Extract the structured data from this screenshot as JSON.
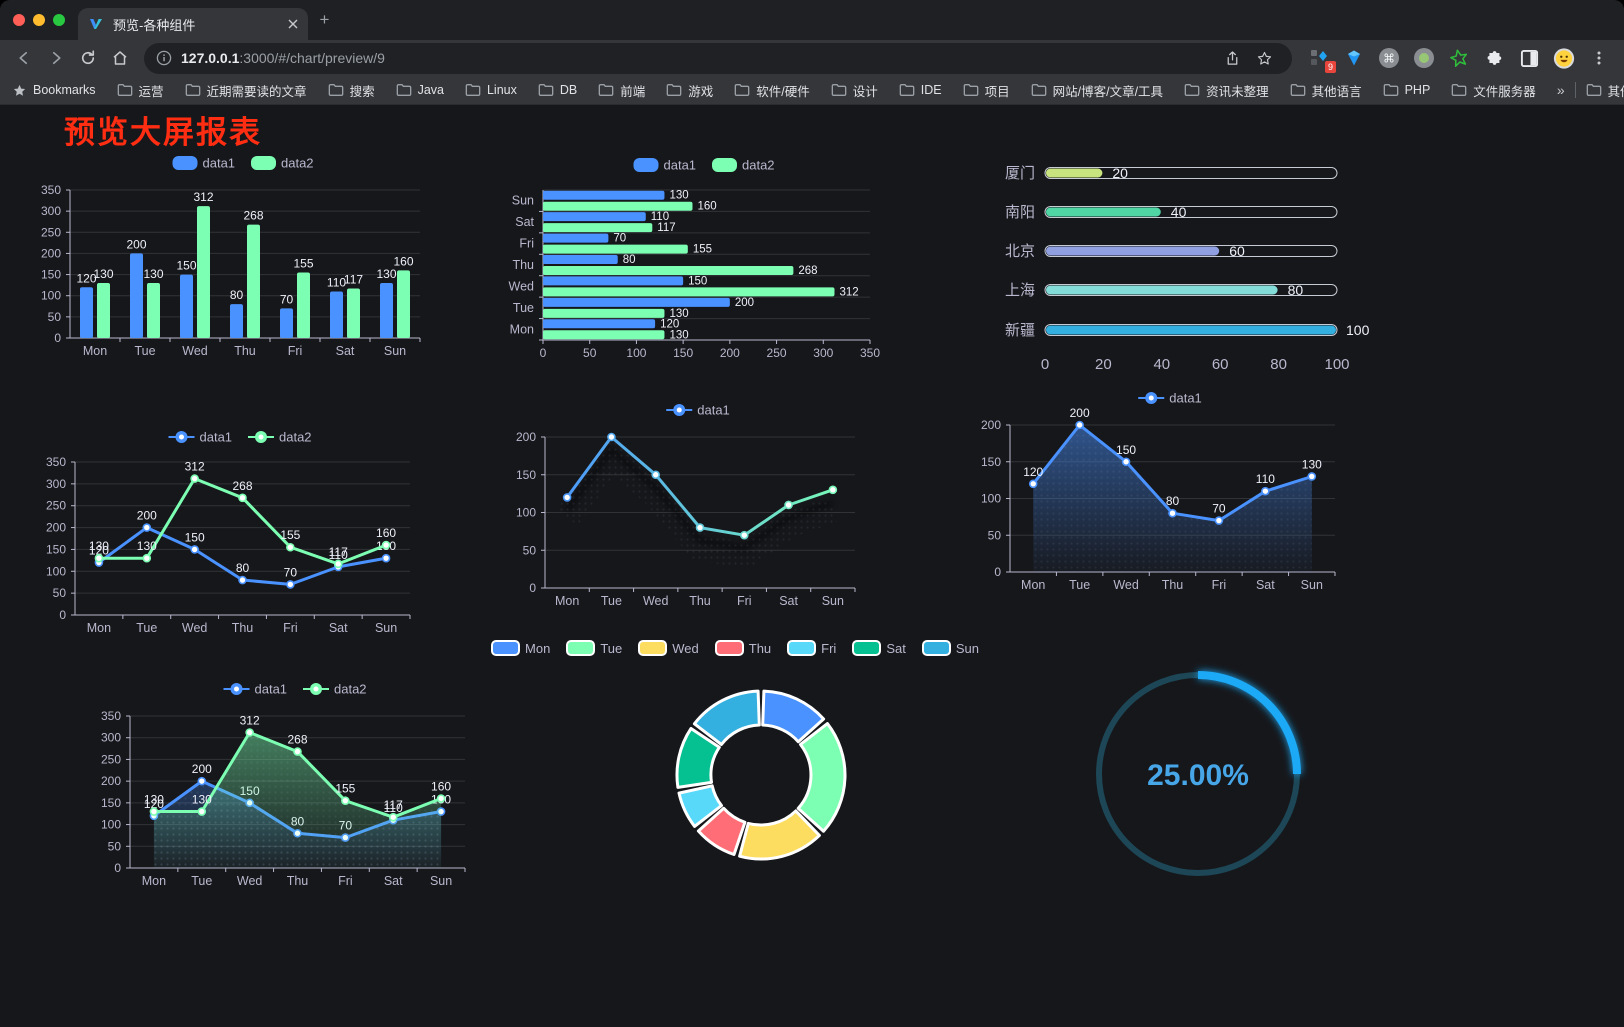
{
  "browser": {
    "tab": {
      "title": "预览-各种组件"
    },
    "newtab_label": "+",
    "url": {
      "host": "127.0.0.1",
      "rest": ":3000/#/chart/preview/9"
    },
    "extension_badge": "9",
    "bookmarks_label": "Bookmarks",
    "bookmarks": [
      "运营",
      "近期需要读的文章",
      "搜索",
      "Java",
      "Linux",
      "DB",
      "前端",
      "游戏",
      "软件/硬件",
      "设计",
      "IDE",
      "项目",
      "网站/博客/文章/工具",
      "资讯未整理",
      "其他语言",
      "PHP",
      "文件服务器"
    ],
    "overflow_chevron": "»",
    "other_bookmarks": "其他书签"
  },
  "page": {
    "heading": "预览大屏报表",
    "heading_color": "#ff2d12",
    "background": "#16171b"
  },
  "theme": {
    "axis_text": "#b9b8ce",
    "grid_line": "rgba(255,255,255,0.12)",
    "value_label": "#eef1fa",
    "palette": [
      "#4992ff",
      "#7cffb2",
      "#fddd60",
      "#ff6e76",
      "#58d9f9",
      "#05c091",
      "#ff8a45"
    ]
  },
  "chart_data": [
    {
      "id": "bar-vertical",
      "type": "bar",
      "categories": [
        "Mon",
        "Tue",
        "Wed",
        "Thu",
        "Fri",
        "Sat",
        "Sun"
      ],
      "series": [
        {
          "name": "data1",
          "color": "#4992ff",
          "values": [
            120,
            200,
            150,
            80,
            70,
            110,
            130
          ]
        },
        {
          "name": "data2",
          "color": "#7cffb2",
          "values": [
            130,
            130,
            312,
            268,
            155,
            117,
            160
          ]
        }
      ],
      "ylim": [
        0,
        350
      ],
      "ystep": 50,
      "labels": true,
      "legend_position": "top",
      "grid": true
    },
    {
      "id": "bar-horizontal",
      "type": "bar",
      "orientation": "horizontal",
      "categories": [
        "Mon",
        "Tue",
        "Wed",
        "Thu",
        "Fri",
        "Sat",
        "Sun"
      ],
      "series": [
        {
          "name": "data1",
          "color": "#4992ff",
          "values": [
            120,
            200,
            150,
            80,
            70,
            110,
            130
          ]
        },
        {
          "name": "data2",
          "color": "#7cffb2",
          "values": [
            130,
            130,
            312,
            268,
            155,
            117,
            160
          ]
        }
      ],
      "xlim": [
        0,
        350
      ],
      "xstep": 50,
      "labels": true,
      "legend_position": "top",
      "grid": true
    },
    {
      "id": "progress",
      "type": "bar",
      "subtype": "progress-pills",
      "xlim": [
        0,
        100
      ],
      "xticks": [
        0,
        20,
        40,
        60,
        80,
        100
      ],
      "items": [
        {
          "label": "厦门",
          "value": 20,
          "color": "#c8e47f"
        },
        {
          "label": "南阳",
          "value": 40,
          "color": "#4fd6a4"
        },
        {
          "label": "北京",
          "value": 60,
          "color": "#8f9fe0"
        },
        {
          "label": "上海",
          "value": 80,
          "color": "#83dcd8"
        },
        {
          "label": "新疆",
          "value": 100,
          "color": "#33b0e0"
        }
      ]
    },
    {
      "id": "line-basic",
      "type": "line",
      "categories": [
        "Mon",
        "Tue",
        "Wed",
        "Thu",
        "Fri",
        "Sat",
        "Sun"
      ],
      "series": [
        {
          "name": "data1",
          "color": "#4992ff",
          "values": [
            120,
            200,
            150,
            80,
            70,
            110,
            130
          ]
        },
        {
          "name": "data2",
          "color": "#7cffb2",
          "values": [
            130,
            130,
            312,
            268,
            155,
            117,
            160
          ]
        }
      ],
      "ylim": [
        0,
        350
      ],
      "ystep": 50,
      "labels": true,
      "legend_position": "top",
      "grid": true
    },
    {
      "id": "line-gradient",
      "type": "line",
      "categories": [
        "Mon",
        "Tue",
        "Wed",
        "Thu",
        "Fri",
        "Sat",
        "Sun"
      ],
      "series": [
        {
          "name": "data1",
          "gradient": [
            "#4992ff",
            "#7cffb2"
          ],
          "values": [
            120,
            200,
            150,
            80,
            70,
            110,
            130
          ]
        }
      ],
      "ylim": [
        0,
        200
      ],
      "ystep": 50,
      "labels": false,
      "shadow": true,
      "legend_position": "top",
      "grid": true
    },
    {
      "id": "line-area",
      "type": "area",
      "categories": [
        "Mon",
        "Tue",
        "Wed",
        "Thu",
        "Fri",
        "Sat",
        "Sun"
      ],
      "series": [
        {
          "name": "data1",
          "color": "#4992ff",
          "area": true,
          "values": [
            120,
            200,
            150,
            80,
            70,
            110,
            130
          ]
        }
      ],
      "ylim": [
        0,
        200
      ],
      "ystep": 50,
      "labels": true,
      "legend_position": "top",
      "grid": true
    },
    {
      "id": "line-area-double",
      "type": "area",
      "categories": [
        "Mon",
        "Tue",
        "Wed",
        "Thu",
        "Fri",
        "Sat",
        "Sun"
      ],
      "series": [
        {
          "name": "data1",
          "color": "#4992ff",
          "area": true,
          "values": [
            120,
            200,
            150,
            80,
            70,
            110,
            130
          ]
        },
        {
          "name": "data2",
          "color": "#7cffb2",
          "area": true,
          "values": [
            130,
            130,
            312,
            268,
            155,
            117,
            160
          ]
        }
      ],
      "ylim": [
        0,
        350
      ],
      "ystep": 50,
      "labels": true,
      "legend_position": "top",
      "grid": true
    },
    {
      "id": "donut",
      "type": "pie",
      "inner_radius_ratio": 0.6,
      "legend_position": "top",
      "items": [
        {
          "label": "Mon",
          "value": 120,
          "color": "#4992ff"
        },
        {
          "label": "Tue",
          "value": 200,
          "color": "#7cffb2"
        },
        {
          "label": "Wed",
          "value": 150,
          "color": "#fddd60"
        },
        {
          "label": "Thu",
          "value": 80,
          "color": "#ff6e76"
        },
        {
          "label": "Fri",
          "value": 70,
          "color": "#58d9f9"
        },
        {
          "label": "Sat",
          "value": 110,
          "color": "#05c091"
        },
        {
          "label": "Sun",
          "value": 130,
          "color": "#33b0e0"
        }
      ],
      "item_border_color": "#ffffff"
    },
    {
      "id": "gauge",
      "type": "gauge",
      "value": 25,
      "max": 100,
      "display": "25.00%",
      "progress_color": "#1ba9f5",
      "track_color": "#1d4756",
      "text_color": "#46a6e8"
    }
  ]
}
